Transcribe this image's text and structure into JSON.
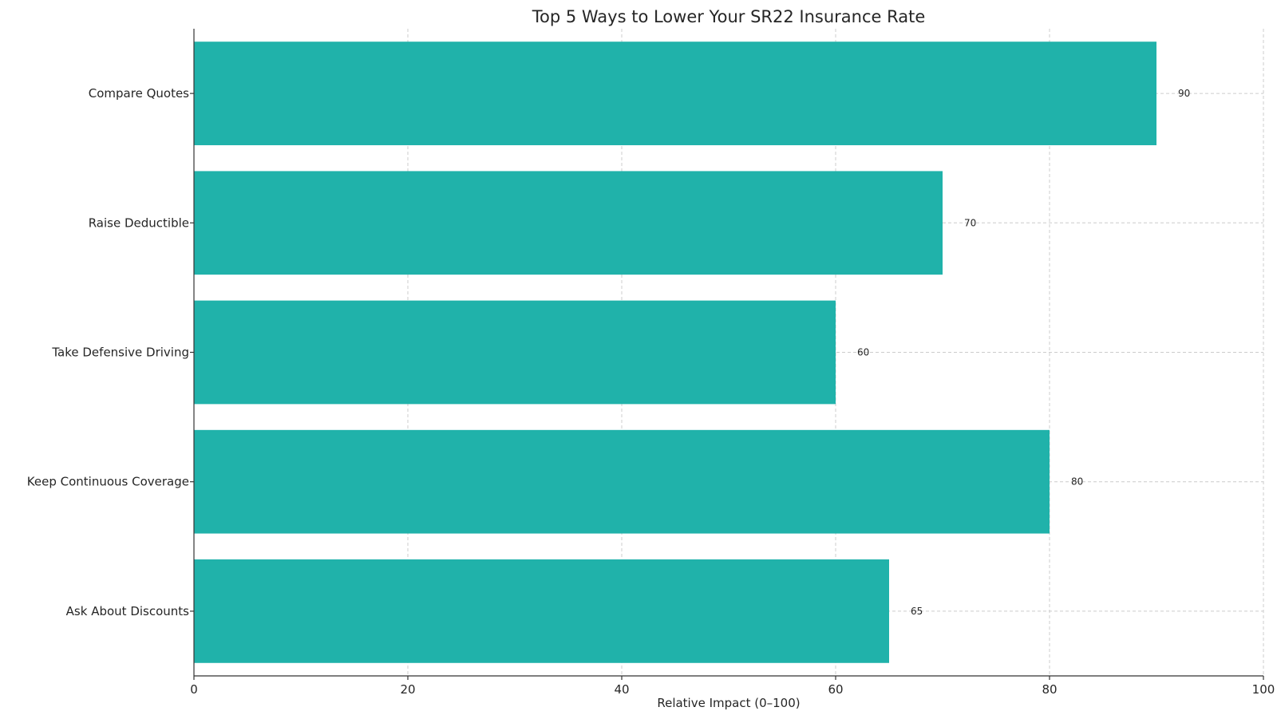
{
  "chart_data": {
    "type": "bar",
    "orientation": "horizontal",
    "title": "Top 5 Ways to Lower Your SR22 Insurance Rate",
    "xlabel": "Relative Impact (0–100)",
    "ylabel": "",
    "categories": [
      "Compare Quotes",
      "Raise Deductible",
      "Take Defensive Driving",
      "Keep Continuous Coverage",
      "Ask About Discounts"
    ],
    "values": [
      90,
      70,
      60,
      80,
      65
    ],
    "data_labels": [
      "90",
      "70",
      "60",
      "80",
      "65"
    ],
    "xlim": [
      0,
      100
    ],
    "xticks": [
      0,
      20,
      40,
      60,
      80,
      100
    ],
    "xtick_labels": [
      "0",
      "20",
      "40",
      "60",
      "80",
      "100"
    ],
    "grid": true,
    "bar_color": "#20b2aa",
    "legend": "none"
  }
}
